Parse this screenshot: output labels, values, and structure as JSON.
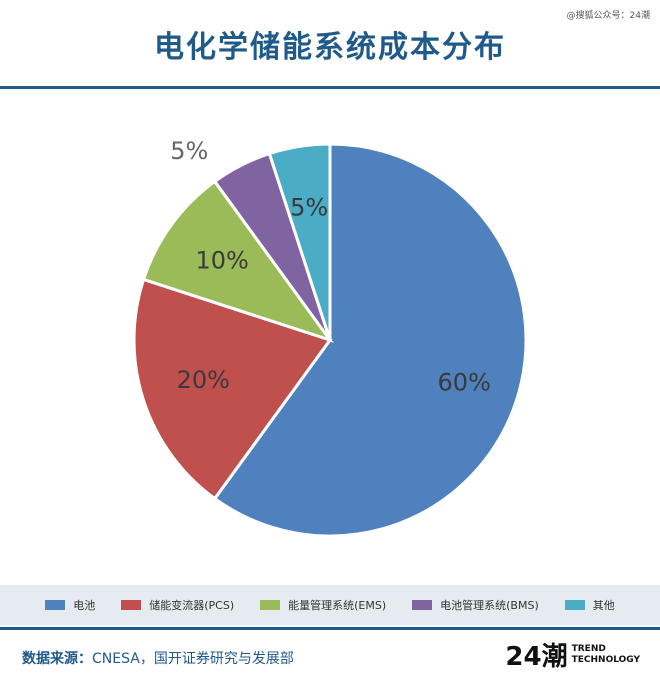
{
  "watermark": "@搜狐公众号：24潮",
  "brand": {
    "mark": "24潮",
    "line1": "TREND",
    "line2": "TECHNOLOGY"
  },
  "source": {
    "label": "数据来源：",
    "text": "CNESA，国开证券研究与发展部"
  },
  "chart_data": {
    "type": "pie",
    "title": "电化学储能系统成本分布",
    "legend_position": "bottom",
    "slices": [
      {
        "name": "电池",
        "value": 60,
        "label": "60%",
        "color": "#4e81bd"
      },
      {
        "name": "储能变流器(PCS)",
        "value": 20,
        "label": "20%",
        "color": "#c0504d"
      },
      {
        "name": "能量管理系统(EMS)",
        "value": 10,
        "label": "10%",
        "color": "#9bbb59"
      },
      {
        "name": "电池管理系统(BMS)",
        "value": 5,
        "label": "5%",
        "color": "#8064a2"
      },
      {
        "name": "其他",
        "value": 5,
        "label": "5%",
        "color": "#4bacc6"
      }
    ]
  }
}
